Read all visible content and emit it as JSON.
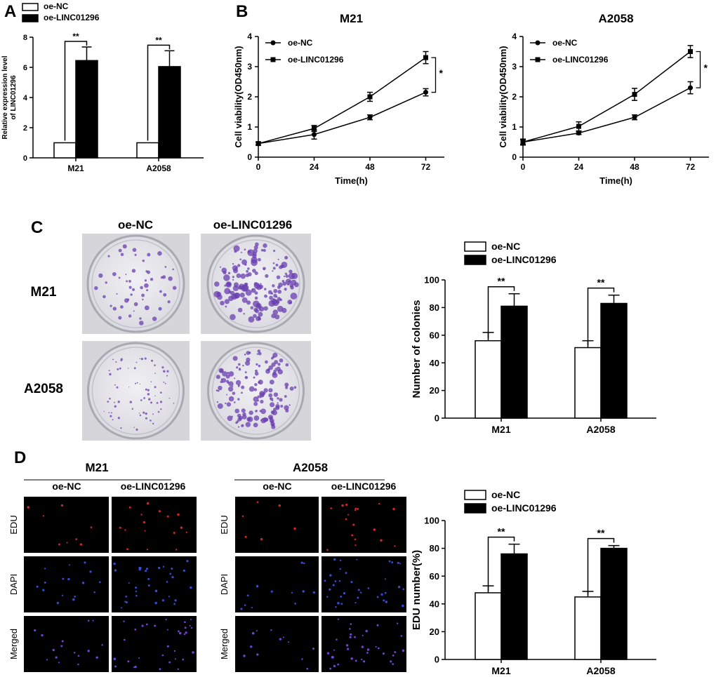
{
  "colors": {
    "oe_nc": "#ffffff",
    "oe_linc": "#000000",
    "axis": "#000000",
    "edu_dot": "#ff2a2a",
    "dapi_dot": "#3b5bff",
    "merged_dot": "#8a4bff",
    "colony": "#6a3fb0",
    "plate_bg": "#e6e6ea"
  },
  "panel_labels": {
    "a": "A",
    "b": "B",
    "c": "C",
    "d": "D"
  },
  "legend": {
    "oe_nc": "oe-NC",
    "oe_linc": "oe-LINC01296"
  },
  "panel_c": {
    "col1": "oe-NC",
    "col2": "oe-LINC01296",
    "row1": "M21",
    "row2": "A2058"
  },
  "panel_d": {
    "group1": "M21",
    "group2": "A2058",
    "col_nc": "oe-NC",
    "col_linc": "oe-LINC01296",
    "rows": [
      "EDU",
      "DAPI",
      "Merged"
    ]
  },
  "chart_data": [
    {
      "id": "A",
      "type": "bar",
      "categories": [
        "M21",
        "A2058"
      ],
      "series": [
        {
          "name": "oe-NC",
          "values": [
            1.0,
            1.0
          ],
          "errors": [
            0,
            0
          ]
        },
        {
          "name": "oe-LINC01296",
          "values": [
            6.45,
            6.05
          ],
          "errors": [
            0.9,
            1.05
          ]
        }
      ],
      "ylabel": "Relative expression level\nof LINC01296",
      "ylim": [
        0,
        8
      ],
      "yticks": [
        0,
        2,
        4,
        6,
        8
      ],
      "significance": [
        "**",
        "**"
      ]
    },
    {
      "id": "B1",
      "type": "line",
      "title": "M21",
      "x": [
        0,
        24,
        48,
        72
      ],
      "series": [
        {
          "name": "oe-NC",
          "marker": "circle",
          "values": [
            0.45,
            0.75,
            1.32,
            2.15
          ],
          "errors": [
            0.05,
            0.15,
            0.08,
            0.12
          ]
        },
        {
          "name": "oe-LINC01296",
          "marker": "square",
          "values": [
            0.45,
            0.95,
            2.0,
            3.3
          ],
          "errors": [
            0.05,
            0.1,
            0.15,
            0.2
          ]
        }
      ],
      "xlabel": "Time(h)",
      "ylabel": "Cell viability(OD450nm)",
      "xlim": [
        0,
        80
      ],
      "ylim": [
        0,
        4
      ],
      "xticks": [
        0,
        24,
        48,
        72
      ],
      "yticks": [
        0,
        1,
        2,
        3,
        4
      ],
      "significance": "*"
    },
    {
      "id": "B2",
      "type": "line",
      "title": "A2058",
      "x": [
        0,
        24,
        48,
        72
      ],
      "series": [
        {
          "name": "oe-NC",
          "marker": "circle",
          "values": [
            0.5,
            0.8,
            1.32,
            2.3
          ],
          "errors": [
            0.08,
            0.05,
            0.08,
            0.2
          ]
        },
        {
          "name": "oe-LINC01296",
          "marker": "square",
          "values": [
            0.5,
            1.02,
            2.08,
            3.5
          ],
          "errors": [
            0.1,
            0.15,
            0.2,
            0.2
          ]
        }
      ],
      "xlabel": "Time(h)",
      "ylabel": "Cell viability(OD450nm)",
      "xlim": [
        0,
        80
      ],
      "ylim": [
        0,
        4
      ],
      "xticks": [
        0,
        24,
        48,
        72
      ],
      "yticks": [
        0,
        1,
        2,
        3,
        4
      ],
      "significance": "*"
    },
    {
      "id": "C",
      "type": "bar",
      "categories": [
        "M21",
        "A2058"
      ],
      "series": [
        {
          "name": "oe-NC",
          "values": [
            56,
            51
          ],
          "errors": [
            6,
            5
          ]
        },
        {
          "name": "oe-LINC01296",
          "values": [
            81,
            83
          ],
          "errors": [
            9,
            6
          ]
        }
      ],
      "ylabel": "Number of colonies",
      "ylim": [
        0,
        100
      ],
      "yticks": [
        0,
        20,
        40,
        60,
        80,
        100
      ],
      "significance": [
        "**",
        "**"
      ]
    },
    {
      "id": "D",
      "type": "bar",
      "categories": [
        "M21",
        "A2058"
      ],
      "series": [
        {
          "name": "oe-NC",
          "values": [
            48,
            45
          ],
          "errors": [
            5,
            4
          ]
        },
        {
          "name": "oe-LINC01296",
          "values": [
            76,
            80
          ],
          "errors": [
            7,
            2
          ]
        }
      ],
      "ylabel": "EDU number(%)",
      "ylim": [
        0,
        100
      ],
      "yticks": [
        0,
        20,
        40,
        60,
        80,
        100
      ],
      "significance": [
        "**",
        "**"
      ]
    }
  ]
}
